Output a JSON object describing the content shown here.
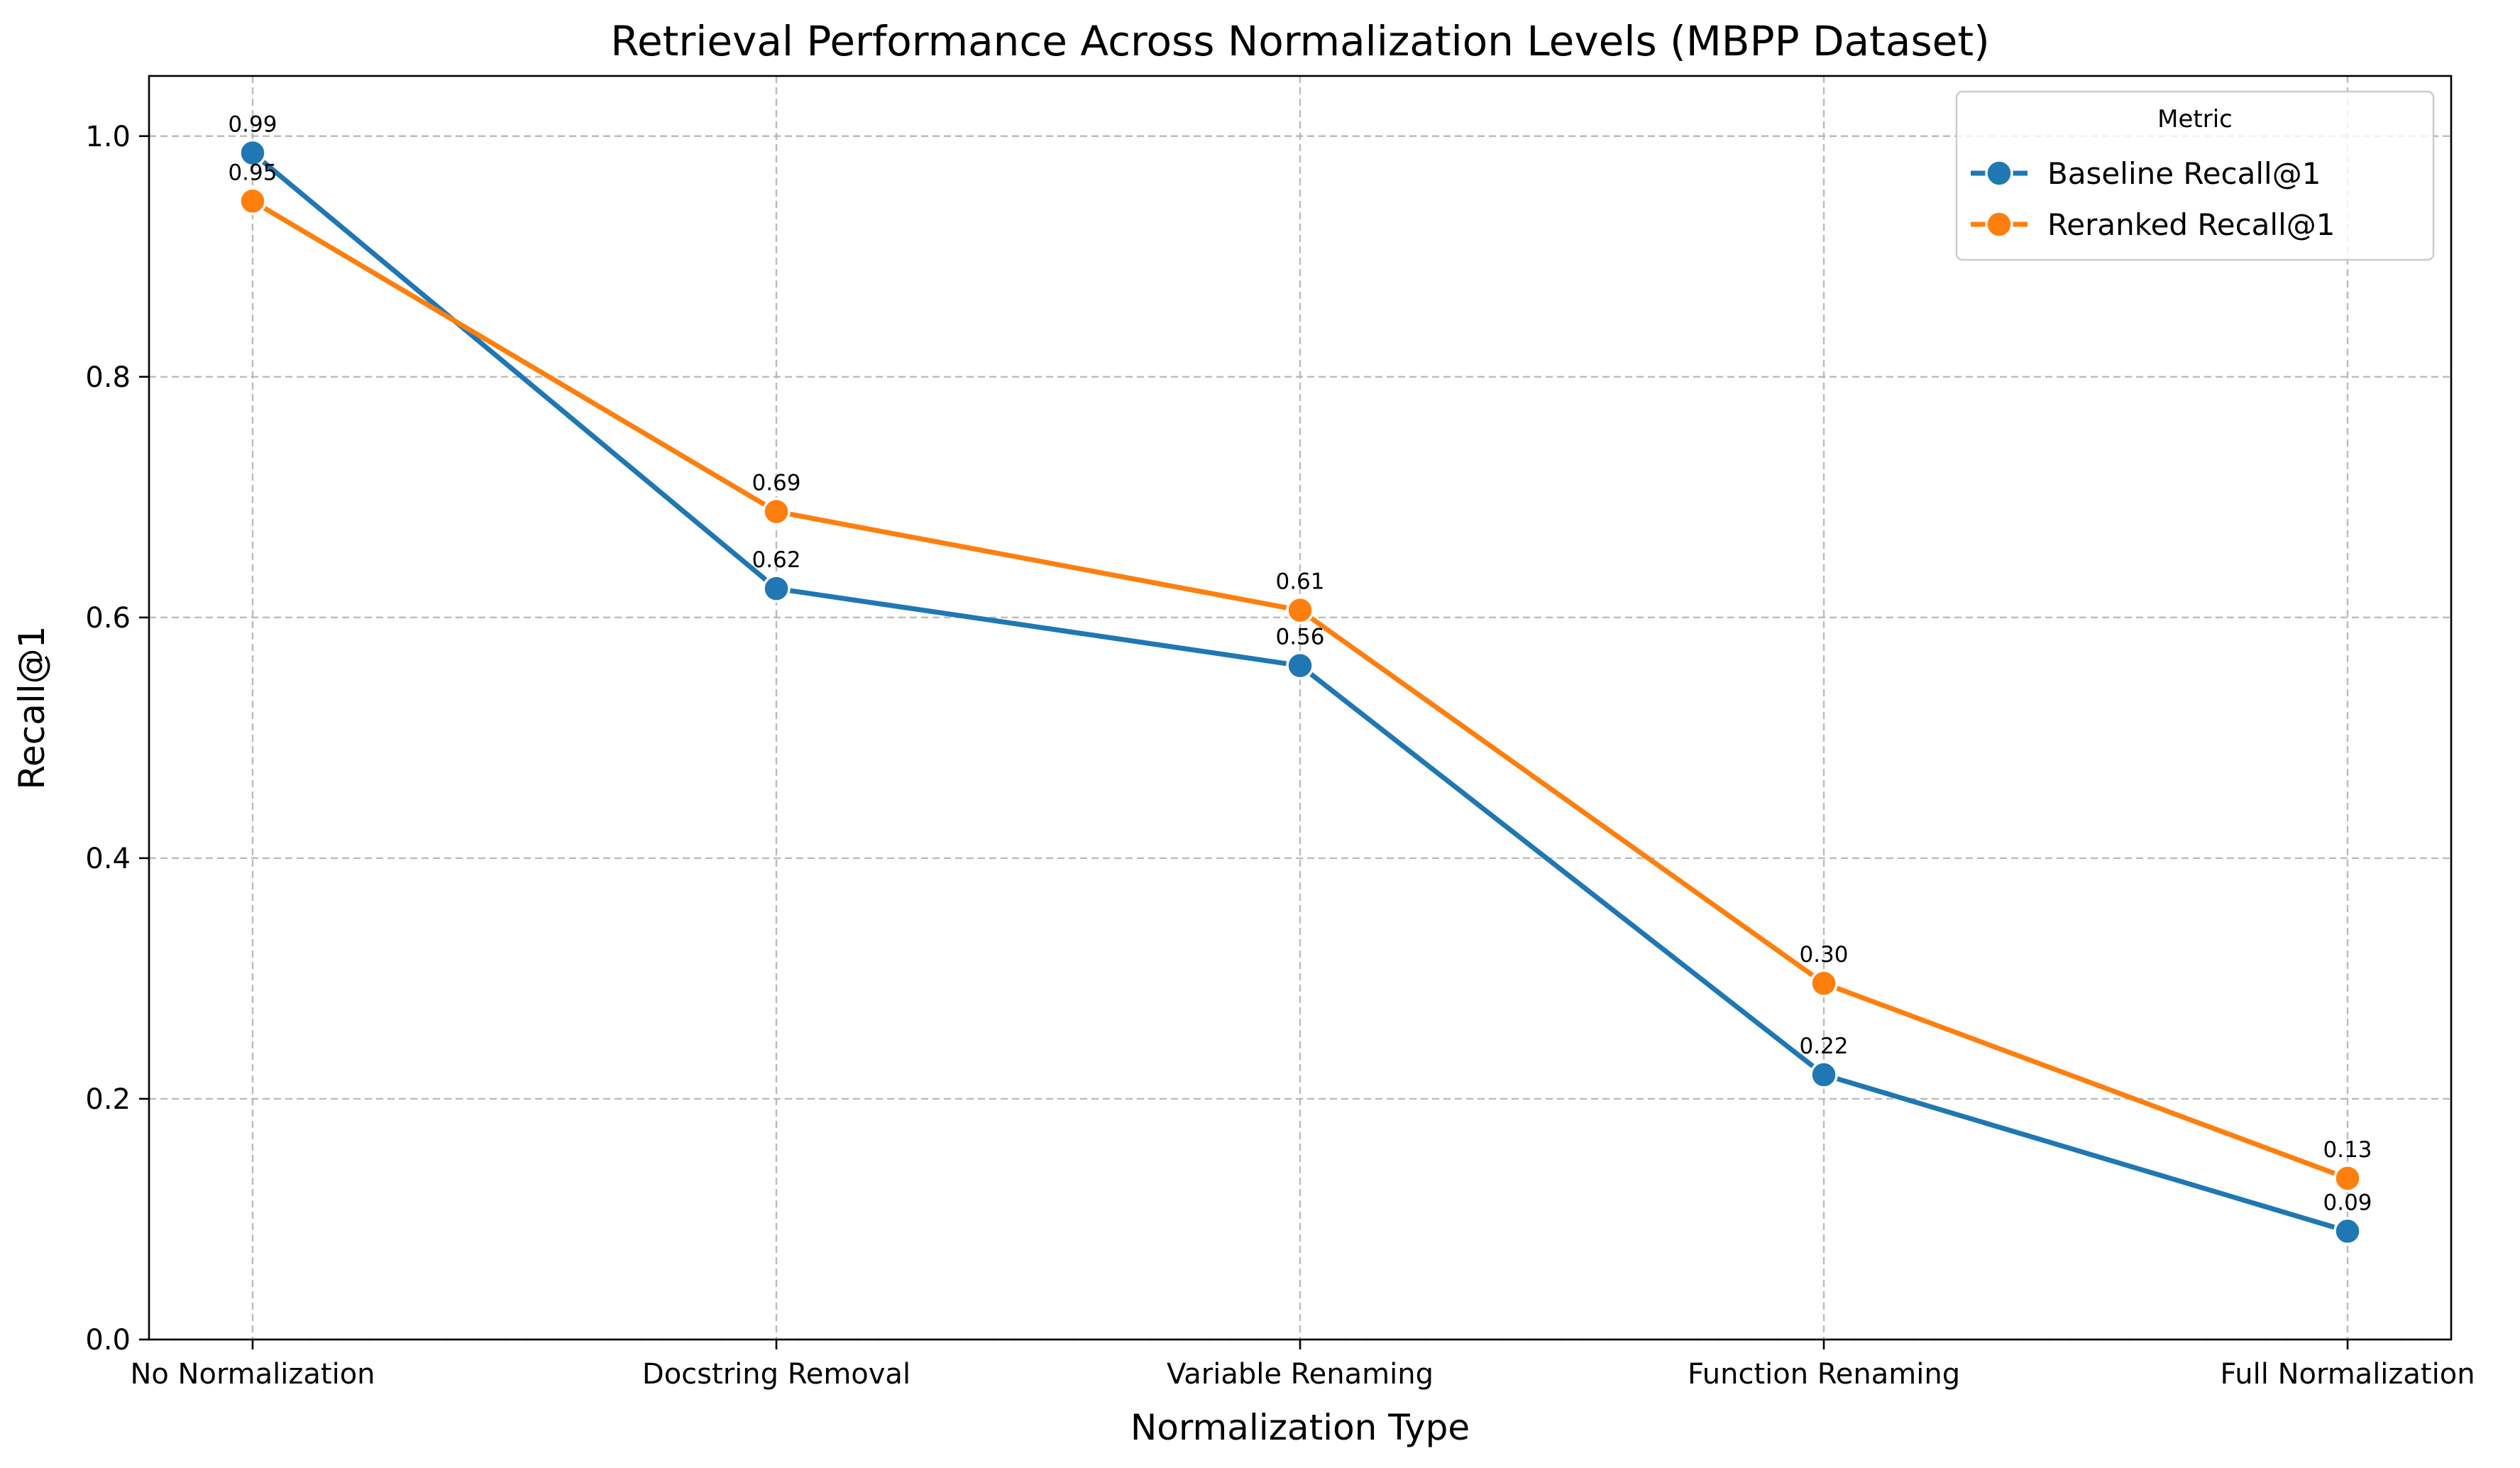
{
  "chart_data": {
    "type": "line",
    "title": "Retrieval Performance Across Normalization Levels (MBPP Dataset)",
    "xlabel": "Normalization Type",
    "ylabel": "Recall@1",
    "categories": [
      "No Normalization",
      "Docstring Removal",
      "Variable Renaming",
      "Function Renaming",
      "Full Normalization"
    ],
    "ylim": [
      0,
      1.05
    ],
    "yticks": [
      0.0,
      0.2,
      0.4,
      0.6,
      0.8,
      1.0
    ],
    "ytick_labels": [
      "0.0",
      "0.2",
      "0.4",
      "0.6",
      "0.8",
      "1.0"
    ],
    "grid": true,
    "legend": {
      "title": "Metric",
      "placement": "top-right"
    },
    "series": [
      {
        "name": "Baseline Recall@1",
        "color": "#1f77b4",
        "values": [
          0.986,
          0.624,
          0.56,
          0.22,
          0.09
        ],
        "labels": [
          "0.99",
          "0.62",
          "0.56",
          "0.22",
          "0.09"
        ]
      },
      {
        "name": "Reranked Recall@1",
        "color": "#ff7f0e",
        "values": [
          0.946,
          0.688,
          0.606,
          0.296,
          0.134
        ],
        "labels": [
          "0.95",
          "0.69",
          "0.61",
          "0.30",
          "0.13"
        ]
      }
    ]
  }
}
